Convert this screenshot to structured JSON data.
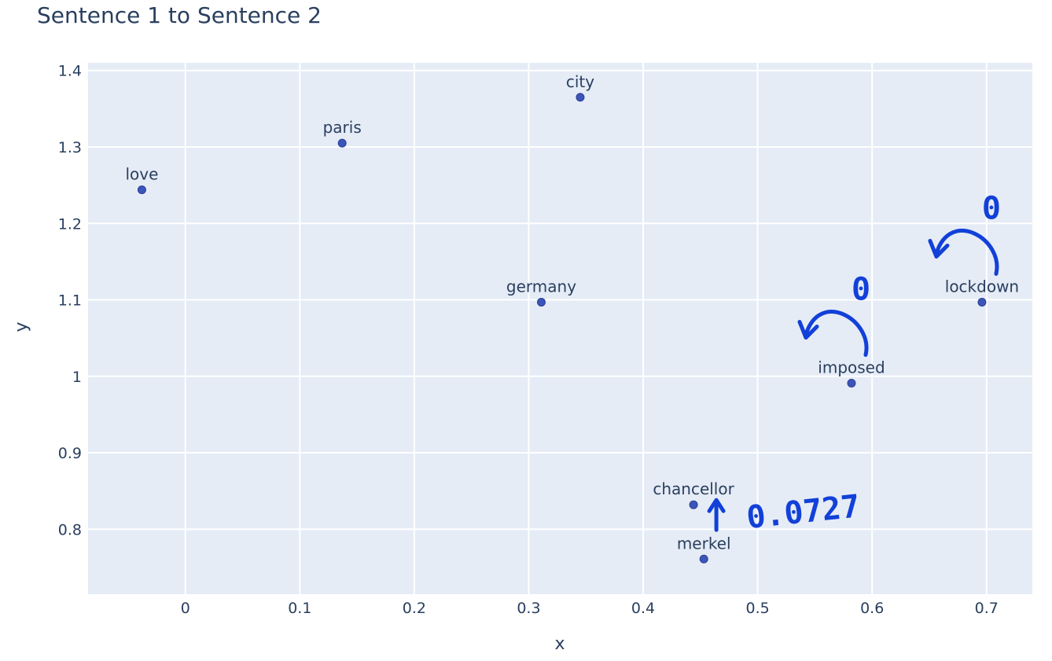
{
  "chart_data": {
    "type": "scatter",
    "title": "Sentence 1 to Sentence 2",
    "xlabel": "x",
    "ylabel": "y",
    "xlim": [
      -0.085,
      0.74
    ],
    "ylim": [
      0.715,
      1.41
    ],
    "x_ticks": [
      0,
      0.1,
      0.2,
      0.3,
      0.4,
      0.5,
      0.6,
      0.7
    ],
    "x_tick_labels": [
      "0",
      "0.1",
      "0.2",
      "0.3",
      "0.4",
      "0.5",
      "0.6",
      "0.7"
    ],
    "y_ticks": [
      0.8,
      0.9,
      1.0,
      1.1,
      1.2,
      1.3,
      1.4
    ],
    "y_tick_labels": [
      "0.8",
      "0.9",
      "1",
      "1.1",
      "1.2",
      "1.3",
      "1.4"
    ],
    "grid": true,
    "colors": {
      "plot_bg": "#e5ecf6",
      "grid": "#ffffff",
      "marker": "#3c55b8",
      "text": "#2a3f5f",
      "annotation": "#1240d8"
    },
    "points": [
      {
        "label": "love",
        "x": -0.038,
        "y": 1.244
      },
      {
        "label": "paris",
        "x": 0.137,
        "y": 1.305
      },
      {
        "label": "city",
        "x": 0.345,
        "y": 1.365
      },
      {
        "label": "germany",
        "x": 0.311,
        "y": 1.097
      },
      {
        "label": "lockdown",
        "x": 0.696,
        "y": 1.097
      },
      {
        "label": "imposed",
        "x": 0.582,
        "y": 0.991
      },
      {
        "label": "chancellor",
        "x": 0.444,
        "y": 0.832
      },
      {
        "label": "merkel",
        "x": 0.453,
        "y": 0.761
      }
    ],
    "annotations": [
      {
        "text": "0",
        "shape": "curved-arrow",
        "near": "lockdown"
      },
      {
        "text": "0",
        "shape": "curved-arrow",
        "near": "imposed"
      },
      {
        "text": "0.0727",
        "shape": "up-arrow",
        "near": "chancellor"
      }
    ]
  }
}
